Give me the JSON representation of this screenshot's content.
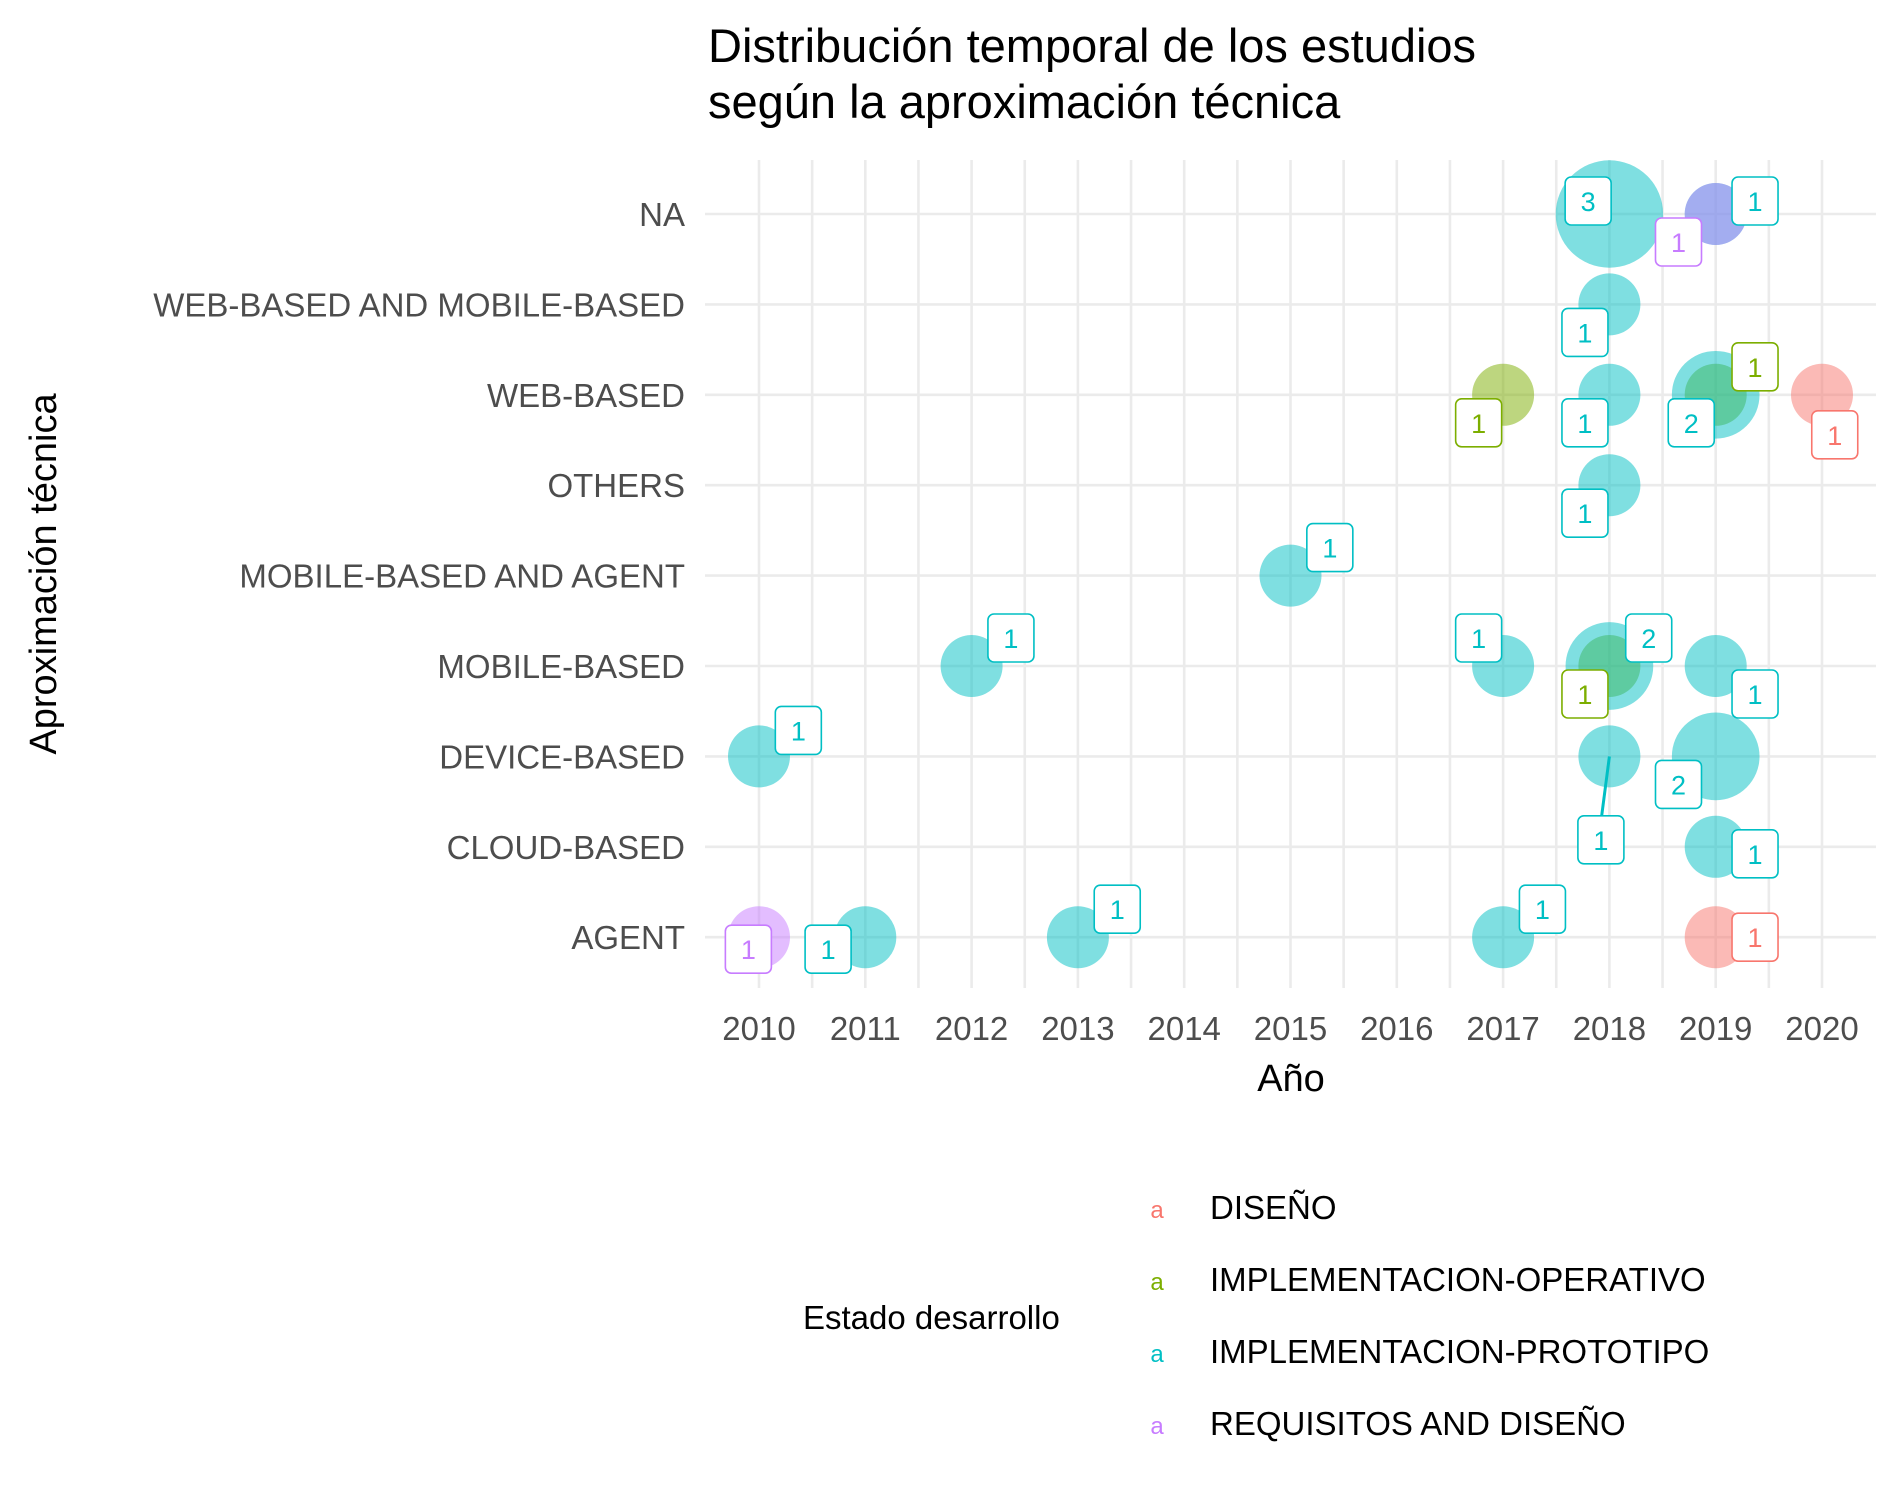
{
  "chart_data": {
    "type": "scatter",
    "title": "Distribución temporal de los estudios\nsegún la aproximación técnica",
    "xlabel": "Año",
    "ylabel": "Aproximación técnica",
    "xlim": [
      2010,
      2020
    ],
    "x_ticks": [
      "2010",
      "2011",
      "2012",
      "2013",
      "2014",
      "2015",
      "2016",
      "2017",
      "2018",
      "2019",
      "2020"
    ],
    "categories": [
      "NA",
      "WEB-BASED AND MOBILE-BASED",
      "WEB-BASED",
      "OTHERS",
      "MOBILE-BASED AND AGENT",
      "MOBILE-BASED",
      "DEVICE-BASED",
      "CLOUD-BASED",
      "AGENT"
    ],
    "grid": true,
    "legend": {
      "title": "Estado desarrollo",
      "position": "bottom",
      "key_glyph": "a",
      "entries": [
        {
          "name": "DISEÑO",
          "color": "#F8766D"
        },
        {
          "name": "IMPLEMENTACION-OPERATIVO",
          "color": "#7CAE00"
        },
        {
          "name": "IMPLEMENTACION-PROTOTIPO",
          "color": "#00BFC4"
        },
        {
          "name": "REQUISITOS AND DISEÑO",
          "color": "#C77CFF"
        }
      ]
    },
    "series": [
      {
        "name": "DISEÑO",
        "color": "#F8766D",
        "points": [
          {
            "x": 2020,
            "y": "WEB-BASED",
            "count": 1
          },
          {
            "x": 2019,
            "y": "AGENT",
            "count": 1
          }
        ]
      },
      {
        "name": "IMPLEMENTACION-OPERATIVO",
        "color": "#7CAE00",
        "points": [
          {
            "x": 2017,
            "y": "WEB-BASED",
            "count": 1
          },
          {
            "x": 2019,
            "y": "WEB-BASED",
            "count": 1
          },
          {
            "x": 2018,
            "y": "MOBILE-BASED",
            "count": 1
          }
        ]
      },
      {
        "name": "IMPLEMENTACION-PROTOTIPO",
        "color": "#00BFC4",
        "points": [
          {
            "x": 2018,
            "y": "NA",
            "count": 3
          },
          {
            "x": 2019,
            "y": "NA",
            "count": 1
          },
          {
            "x": 2018,
            "y": "WEB-BASED AND MOBILE-BASED",
            "count": 1
          },
          {
            "x": 2018,
            "y": "WEB-BASED",
            "count": 1
          },
          {
            "x": 2019,
            "y": "WEB-BASED",
            "count": 2
          },
          {
            "x": 2018,
            "y": "OTHERS",
            "count": 1
          },
          {
            "x": 2015,
            "y": "MOBILE-BASED AND AGENT",
            "count": 1
          },
          {
            "x": 2012,
            "y": "MOBILE-BASED",
            "count": 1
          },
          {
            "x": 2017,
            "y": "MOBILE-BASED",
            "count": 1
          },
          {
            "x": 2018,
            "y": "MOBILE-BASED",
            "count": 2
          },
          {
            "x": 2019,
            "y": "MOBILE-BASED",
            "count": 1
          },
          {
            "x": 2010,
            "y": "DEVICE-BASED",
            "count": 1
          },
          {
            "x": 2018,
            "y": "DEVICE-BASED",
            "count": 1
          },
          {
            "x": 2019,
            "y": "DEVICE-BASED",
            "count": 2
          },
          {
            "x": 2019,
            "y": "CLOUD-BASED",
            "count": 1
          },
          {
            "x": 2011,
            "y": "AGENT",
            "count": 1
          },
          {
            "x": 2013,
            "y": "AGENT",
            "count": 1
          },
          {
            "x": 2017,
            "y": "AGENT",
            "count": 1
          }
        ]
      },
      {
        "name": "REQUISITOS AND DISEÑO",
        "color": "#C77CFF",
        "points": [
          {
            "x": 2019,
            "y": "NA",
            "count": 1
          },
          {
            "x": 2010,
            "y": "AGENT",
            "count": 1
          }
        ]
      }
    ],
    "count_labels": [
      {
        "text": "3",
        "color": "#00BFC4",
        "x": 2017.8,
        "y": "NA"
      },
      {
        "text": "1",
        "color": "#00BFC4",
        "x": 2019.37,
        "y": "NA"
      },
      {
        "text": "1",
        "color": "#C77CFF",
        "x": 2018.65,
        "y": "NA"
      },
      {
        "text": "1",
        "color": "#00BFC4",
        "x": 2017.77,
        "y": "WEB-BASED AND MOBILE-BASED"
      },
      {
        "text": "1",
        "color": "#7CAE00",
        "x": 2016.77,
        "y": "WEB-BASED"
      },
      {
        "text": "1",
        "color": "#00BFC4",
        "x": 2017.77,
        "y": "WEB-BASED"
      },
      {
        "text": "2",
        "color": "#00BFC4",
        "x": 2018.77,
        "y": "WEB-BASED"
      },
      {
        "text": "1",
        "color": "#7CAE00",
        "x": 2019.37,
        "y": "WEB-BASED"
      },
      {
        "text": "1",
        "color": "#F8766D",
        "x": 2020.12,
        "y": "WEB-BASED"
      },
      {
        "text": "1",
        "color": "#00BFC4",
        "x": 2017.77,
        "y": "OTHERS"
      },
      {
        "text": "1",
        "color": "#00BFC4",
        "x": 2015.37,
        "y": "MOBILE-BASED AND AGENT"
      },
      {
        "text": "1",
        "color": "#00BFC4",
        "x": 2012.37,
        "y": "MOBILE-BASED"
      },
      {
        "text": "1",
        "color": "#00BFC4",
        "x": 2016.77,
        "y": "MOBILE-BASED"
      },
      {
        "text": "2",
        "color": "#00BFC4",
        "x": 2018.37,
        "y": "MOBILE-BASED"
      },
      {
        "text": "1",
        "color": "#7CAE00",
        "x": 2017.77,
        "y": "MOBILE-BASED"
      },
      {
        "text": "1",
        "color": "#00BFC4",
        "x": 2019.37,
        "y": "MOBILE-BASED"
      },
      {
        "text": "1",
        "color": "#00BFC4",
        "x": 2010.37,
        "y": "DEVICE-BASED"
      },
      {
        "text": "2",
        "color": "#00BFC4",
        "x": 2018.65,
        "y": "DEVICE-BASED"
      },
      {
        "text": "1",
        "color": "#00BFC4",
        "x": 2017.92,
        "y": "CLOUD-BASED"
      },
      {
        "text": "1",
        "color": "#00BFC4",
        "x": 2019.37,
        "y": "CLOUD-BASED"
      },
      {
        "text": "1",
        "color": "#C77CFF",
        "x": 2009.9,
        "y": "AGENT"
      },
      {
        "text": "1",
        "color": "#00BFC4",
        "x": 2010.65,
        "y": "AGENT"
      },
      {
        "text": "1",
        "color": "#00BFC4",
        "x": 2013.37,
        "y": "AGENT"
      },
      {
        "text": "1",
        "color": "#00BFC4",
        "x": 2017.37,
        "y": "AGENT"
      },
      {
        "text": "1",
        "color": "#F8766D",
        "x": 2019.37,
        "y": "AGENT"
      }
    ]
  }
}
